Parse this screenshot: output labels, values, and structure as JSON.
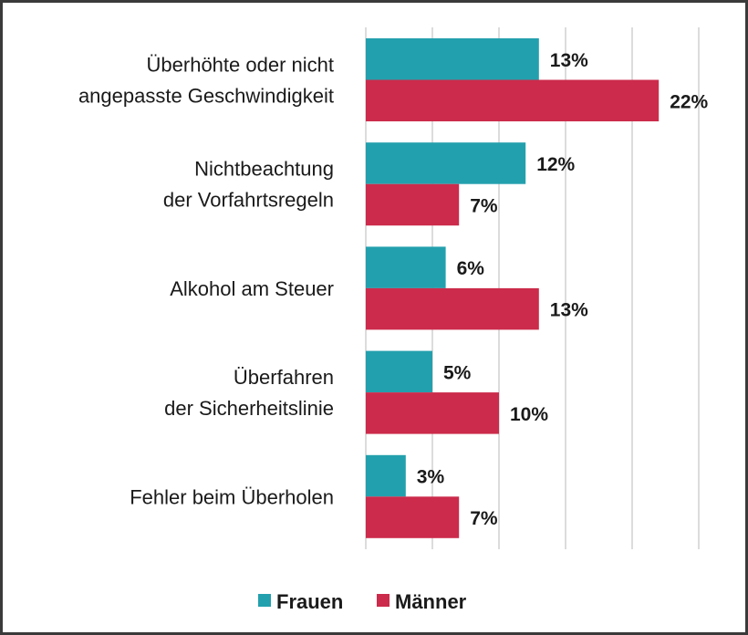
{
  "chart_data": {
    "type": "bar",
    "orientation": "horizontal",
    "categories": [
      [
        "Überhöhte oder nicht",
        "angepasste Geschwindigkeit"
      ],
      [
        "Nichtbeachtung",
        "der Vorfahrtsregeln"
      ],
      [
        "Alkohol am Steuer"
      ],
      [
        "Überfahren",
        "der Sicherheitslinie"
      ],
      [
        "Fehler beim Überholen"
      ]
    ],
    "series": [
      {
        "name": "Frauen",
        "color": "#23a0ad",
        "values": [
          13,
          12,
          6,
          5,
          3
        ],
        "labels": [
          "13%",
          "12%",
          "6%",
          "5%",
          "3%"
        ]
      },
      {
        "name": "Männer",
        "color": "#cc2b4b",
        "values": [
          22,
          7,
          13,
          10,
          7
        ],
        "labels": [
          "22%",
          "7%",
          "13%",
          "10%",
          "7%"
        ]
      }
    ],
    "xlim": [
      0,
      25
    ],
    "grid": true,
    "gridline_step": 5,
    "legend": "bottom"
  }
}
